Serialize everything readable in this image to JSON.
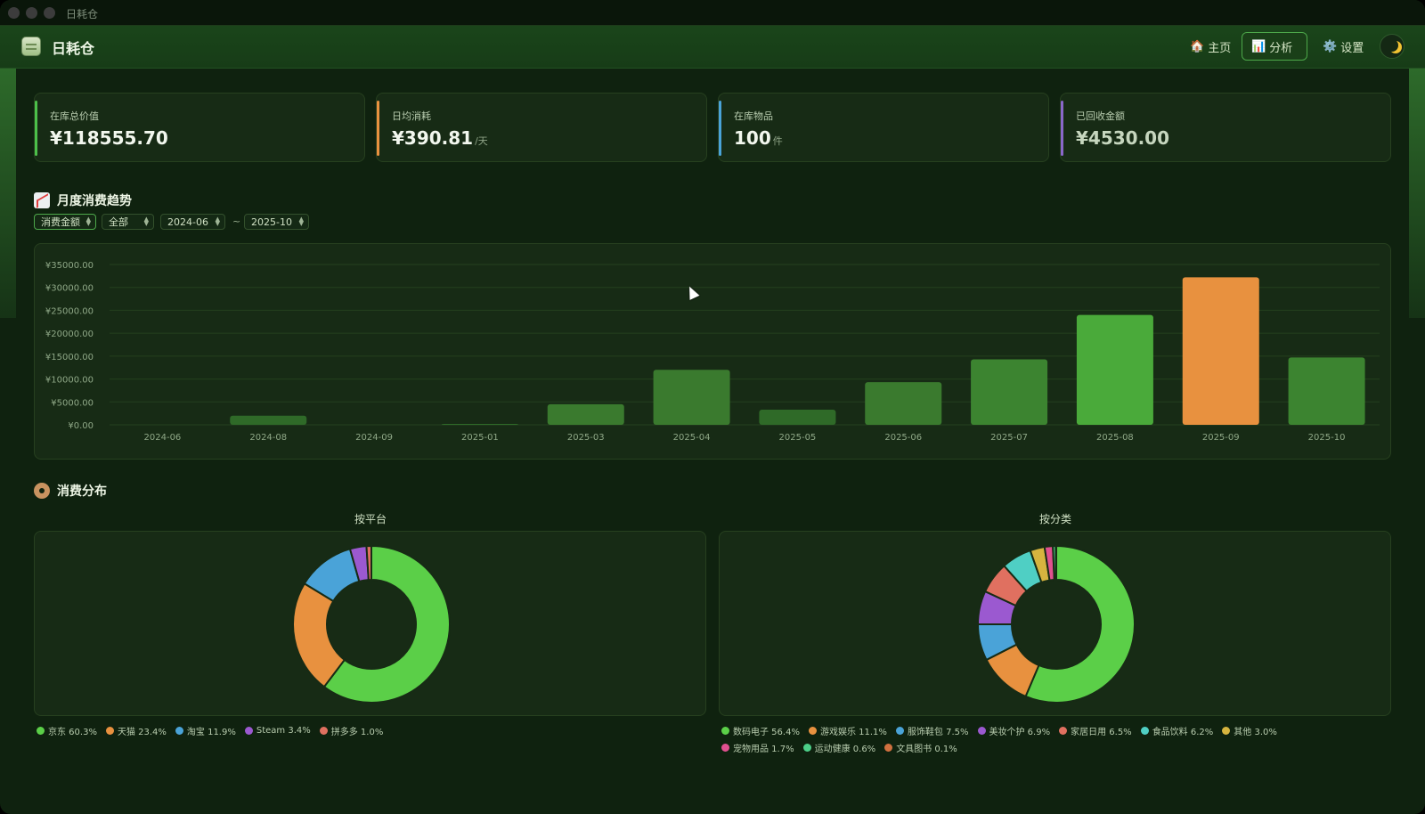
{
  "window": {
    "title": "日耗仓"
  },
  "header": {
    "app_name": "日耗仓",
    "nav": [
      {
        "label": "主页",
        "icon": "house-icon",
        "active": false
      },
      {
        "label": "分析",
        "icon": "bar-chart-icon",
        "active": true
      },
      {
        "label": "设置",
        "icon": "gear-icon",
        "active": false
      }
    ],
    "theme_toggle_icon": "moon-icon"
  },
  "stats": [
    {
      "label": "在库总价值",
      "value": "¥118555.70",
      "unit": "",
      "color": "#4cc04a"
    },
    {
      "label": "日均消耗",
      "value": "¥390.81",
      "unit": "/天",
      "color": "#e8913f"
    },
    {
      "label": "在库物品",
      "value": "100",
      "unit": "件",
      "color": "#4aa3d8"
    },
    {
      "label": "已回收金额",
      "value": "¥4530.00",
      "unit": "",
      "color": "#8a67c9"
    }
  ],
  "trend": {
    "title": "月度消费趋势",
    "filters": {
      "metric": "消费金额",
      "platform": "全部",
      "start": "2024-06",
      "tilde": "~",
      "end": "2025-10"
    }
  },
  "distribution": {
    "title": "消费分布",
    "by_platform_title": "按平台",
    "by_category_title": "按分类",
    "platform_legend": [
      {
        "label": "京东 60.3%",
        "color": "#5bcf48"
      },
      {
        "label": "天猫 23.4%",
        "color": "#e8913f"
      },
      {
        "label": "淘宝 11.9%",
        "color": "#4aa3d8"
      },
      {
        "label": "Steam 3.4%",
        "color": "#9b59d0"
      },
      {
        "label": "拼多多 1.0%",
        "color": "#e07060"
      }
    ],
    "category_legend": [
      {
        "label": "数码电子 56.4%",
        "color": "#5bcf48"
      },
      {
        "label": "游戏娱乐 11.1%",
        "color": "#e8913f"
      },
      {
        "label": "服饰鞋包 7.5%",
        "color": "#4aa3d8"
      },
      {
        "label": "美妆个护 6.9%",
        "color": "#9b59d0"
      },
      {
        "label": "家居日用 6.5%",
        "color": "#e07060"
      },
      {
        "label": "食品饮料 6.2%",
        "color": "#4fcfc4"
      },
      {
        "label": "其他 3.0%",
        "color": "#d6b43f"
      },
      {
        "label": "宠物用品 1.7%",
        "color": "#e0508f"
      },
      {
        "label": "运动健康 0.6%",
        "color": "#4ccf88"
      },
      {
        "label": "文具图书 0.1%",
        "color": "#d0703f"
      }
    ]
  },
  "chart_data": [
    {
      "type": "bar",
      "categories": [
        "2024-06",
        "2024-08",
        "2024-09",
        "2025-01",
        "2025-03",
        "2025-04",
        "2025-05",
        "2025-06",
        "2025-07",
        "2025-08",
        "2025-09",
        "2025-10"
      ],
      "values": [
        0,
        2000,
        0,
        200,
        4500,
        12000,
        3300,
        9300,
        14300,
        24000,
        32200,
        14700
      ],
      "ylim": [
        0,
        35000
      ],
      "yticks": [
        "¥0.00",
        "¥5000.00",
        "¥10000.00",
        "¥15000.00",
        "¥20000.00",
        "¥25000.00",
        "¥30000.00",
        "¥35000.00"
      ],
      "colors": [
        "#2f6a28",
        "#2f6a28",
        "#2f6a28",
        "#2f6a28",
        "#3a7a2e",
        "#3a7a2e",
        "#2f6a28",
        "#3a7a2e",
        "#3c8430",
        "#4aaa3a",
        "#e8913f",
        "#3c8430"
      ],
      "grid": true
    },
    {
      "type": "pie",
      "title": "按平台",
      "labels": [
        "京东",
        "天猫",
        "淘宝",
        "Steam",
        "拼多多"
      ],
      "values": [
        60.3,
        23.4,
        11.9,
        3.4,
        1.0
      ],
      "colors": [
        "#5bcf48",
        "#e8913f",
        "#4aa3d8",
        "#9b59d0",
        "#e07060"
      ]
    },
    {
      "type": "pie",
      "title": "按分类",
      "labels": [
        "数码电子",
        "游戏娱乐",
        "服饰鞋包",
        "美妆个护",
        "家居日用",
        "食品饮料",
        "其他",
        "宠物用品",
        "运动健康",
        "文具图书"
      ],
      "values": [
        56.4,
        11.1,
        7.5,
        6.9,
        6.5,
        6.2,
        3.0,
        1.7,
        0.6,
        0.1
      ],
      "colors": [
        "#5bcf48",
        "#e8913f",
        "#4aa3d8",
        "#9b59d0",
        "#e07060",
        "#4fcfc4",
        "#d6b43f",
        "#e0508f",
        "#4ccf88",
        "#d0703f"
      ]
    }
  ]
}
